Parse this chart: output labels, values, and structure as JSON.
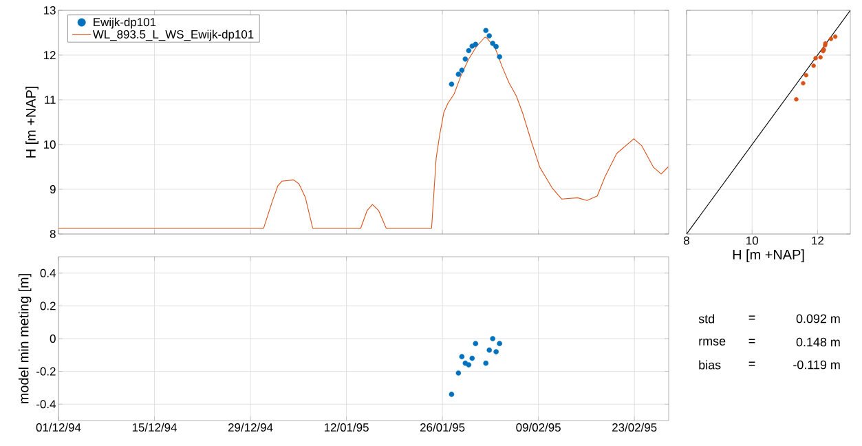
{
  "chart_data": [
    {
      "type": "line",
      "ylabel": "H [m +NAP]",
      "xlim": [
        "1994-12-01",
        "1995-02-28"
      ],
      "ylim": [
        8,
        13
      ],
      "xticks": [
        "1994-12-01",
        "1994-12-15",
        "1994-12-29",
        "1995-01-12",
        "1995-01-26",
        "1995-02-09",
        "1995-02-23"
      ],
      "yticks": [
        8,
        9,
        10,
        11,
        12,
        13
      ],
      "tick_labels": "y",
      "grid": true,
      "legend": "top left",
      "line_style": "solid",
      "series": [
        {
          "name": "Ewijk-dp101",
          "type": "scatter",
          "color": "#0072bd",
          "x": [
            "1995-01-27T08:00",
            "1995-01-28T08:00",
            "1995-01-28T20:00",
            "1995-01-29T08:00",
            "1995-01-29T20:00",
            "1995-01-30T08:00",
            "1995-01-30T20:00",
            "1995-02-01T08:00",
            "1995-02-01T20:00",
            "1995-02-02T08:00",
            "1995-02-02T20:00",
            "1995-02-03T08:00"
          ],
          "values": [
            11.35,
            11.57,
            11.66,
            11.91,
            12.1,
            12.2,
            12.24,
            12.55,
            12.43,
            12.26,
            12.19,
            11.96
          ]
        },
        {
          "name": "WL_893.5_L_WS_Ewijk-dp101",
          "color": "#d95319",
          "x": [
            "1994-12-01T00:00",
            "1994-12-30T22:00",
            "1995-01-01T05:00",
            "1995-01-02T00:00",
            "1995-01-02T14:00",
            "1995-01-04T07:00",
            "1995-01-05T02:00",
            "1995-01-06T00:00",
            "1995-01-07T02:00",
            "1995-01-14T02:00",
            "1995-01-15T00:00",
            "1995-01-15T19:00",
            "1995-01-16T17:00",
            "1995-01-17T19:00",
            "1995-01-24T10:00",
            "1995-01-25T02:00",
            "1995-01-25T14:00",
            "1995-01-26T05:00",
            "1995-01-26T19:00",
            "1995-01-27T17:00",
            "1995-01-28T17:00",
            "1995-01-29T19:00",
            "1995-01-31T00:00",
            "1995-02-01T05:00",
            "1995-02-01T12:00",
            "1995-02-02T17:00",
            "1995-02-03T17:00",
            "1995-02-04T17:00",
            "1995-02-05T19:00",
            "1995-02-06T17:00",
            "1995-02-08T00:00",
            "1995-02-09T05:00",
            "1995-02-11T00:00",
            "1995-02-12T10:00",
            "1995-02-14T17:00",
            "1995-02-16T02:00",
            "1995-02-17T14:00",
            "1995-02-18T17:00",
            "1995-02-20T10:00",
            "1995-02-22T22:00",
            "1995-02-24T02:00",
            "1995-02-25T19:00",
            "1995-02-26T22:00",
            "1995-02-27T22:00"
          ],
          "values": [
            8.13,
            8.13,
            8.74,
            9.08,
            9.18,
            9.21,
            9.12,
            8.82,
            8.13,
            8.13,
            8.52,
            8.66,
            8.52,
            8.13,
            8.13,
            9.69,
            10.2,
            10.72,
            10.92,
            11.13,
            11.54,
            11.9,
            12.2,
            12.4,
            12.38,
            12.15,
            11.74,
            11.38,
            11.08,
            10.7,
            10.05,
            9.49,
            9.03,
            8.78,
            8.81,
            8.75,
            8.85,
            9.28,
            9.8,
            10.13,
            9.97,
            9.49,
            9.34,
            9.5
          ]
        }
      ]
    },
    {
      "type": "scatter",
      "ylabel": "model min meting [m]",
      "xlim": [
        "1994-12-01",
        "1995-02-28"
      ],
      "ylim": [
        -0.5,
        0.5
      ],
      "xticks": [
        {
          "value": "1994-12-01",
          "label": "01/12/94"
        },
        {
          "value": "1994-12-15",
          "label": "15/12/94"
        },
        {
          "value": "1994-12-29",
          "label": "29/12/94"
        },
        {
          "value": "1995-01-12",
          "label": "12/01/95"
        },
        {
          "value": "1995-01-26",
          "label": "26/01/95"
        },
        {
          "value": "1995-02-09",
          "label": "09/02/95"
        },
        {
          "value": "1995-02-23",
          "label": "23/02/95"
        }
      ],
      "yticks": [
        -0.4,
        -0.2,
        0,
        0.2,
        0.4
      ],
      "grid": true,
      "marker": "circle",
      "color": "#0072bd",
      "x": [
        "1995-01-27T08:00",
        "1995-01-28T08:00",
        "1995-01-28T20:00",
        "1995-01-29T08:00",
        "1995-01-29T20:00",
        "1995-01-30T08:00",
        "1995-01-30T20:00",
        "1995-02-01T08:00",
        "1995-02-01T20:00",
        "1995-02-02T08:00",
        "1995-02-02T20:00",
        "1995-02-03T08:00"
      ],
      "values": [
        -0.34,
        -0.21,
        -0.11,
        -0.15,
        -0.16,
        -0.12,
        -0.03,
        -0.15,
        -0.07,
        0.0,
        -0.08,
        -0.03
      ]
    },
    {
      "type": "scatter",
      "xlabel": "H [m +NAP]",
      "xlim": [
        8,
        13
      ],
      "ylim": [
        8,
        13
      ],
      "xticks": [
        8,
        10,
        12
      ],
      "yticks": [
        8,
        9,
        10,
        11,
        12,
        13
      ],
      "tick_labels": "x",
      "grid": true,
      "line_style": "solid",
      "series": [
        {
          "color": "#d95319",
          "x": [
            11.35,
            11.56,
            11.65,
            11.88,
            11.94,
            12.09,
            12.17,
            12.19,
            12.23,
            12.24,
            12.41,
            12.54
          ],
          "values": [
            11.01,
            11.37,
            11.55,
            11.76,
            11.93,
            11.95,
            12.09,
            12.12,
            12.22,
            12.26,
            12.36,
            12.41
          ]
        },
        {
          "type": "line",
          "color": "#000000",
          "x": [
            8,
            13
          ],
          "values": [
            8,
            13
          ]
        }
      ]
    },
    {
      "type": "other",
      "annotations": [
        "std",
        "=",
        "0.092 m",
        "rmse",
        "=",
        "0.148 m",
        "bias",
        "=",
        "-0.119 m"
      ]
    }
  ]
}
